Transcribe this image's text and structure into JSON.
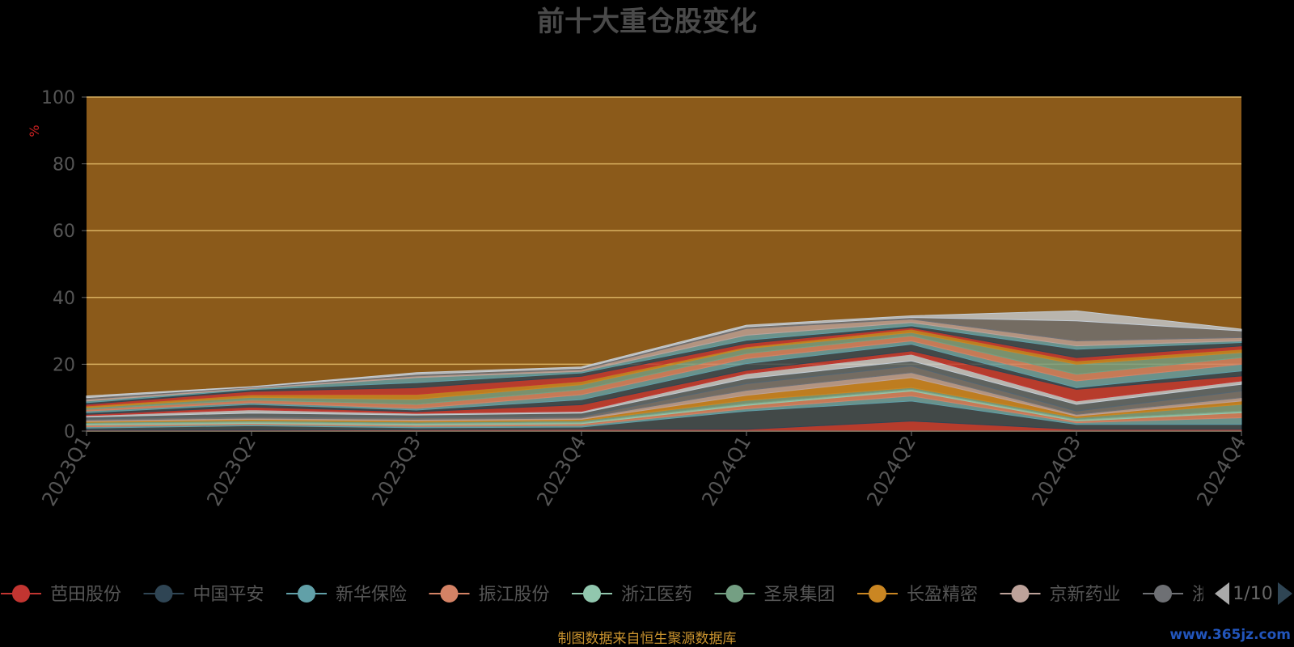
{
  "chart_data": {
    "type": "area",
    "title": "前十大重仓股变化",
    "ylabel": "%",
    "ylim": [
      0,
      100
    ],
    "y_ticks": [
      "0",
      "20",
      "40",
      "60",
      "80",
      "100"
    ],
    "categories": [
      "2023Q1",
      "2023Q2",
      "2023Q3",
      "2023Q4",
      "2024Q1",
      "2024Q2",
      "2024Q3",
      "2024Q4"
    ],
    "stacked": true,
    "grid": true,
    "plot_background": "#8B5A1A",
    "grid_color": "#d8b060",
    "series": [
      {
        "name": "芭田股份",
        "color": "#c23531",
        "values": [
          0.3,
          0.3,
          0.4,
          0.5,
          0.5,
          3.0,
          0.5,
          0.5
        ]
      },
      {
        "name": "中国平安",
        "color": "#2f4554",
        "values": [
          0.6,
          1.3,
          0.6,
          0.7,
          5.5,
          6.0,
          1.5,
          1.5
        ]
      },
      {
        "name": "新华保险",
        "color": "#61a0a8",
        "values": [
          0.4,
          0.4,
          0.4,
          0.5,
          0.7,
          1.5,
          0.5,
          2.0
        ]
      },
      {
        "name": "振江股份",
        "color": "#d48265",
        "values": [
          0.5,
          0.3,
          0.4,
          0.5,
          1.0,
          1.5,
          0.5,
          1.5
        ]
      },
      {
        "name": "浙江医药",
        "color": "#91c7ae",
        "values": [
          0.5,
          0.5,
          0.5,
          0.5,
          0.5,
          0.5,
          0.5,
          0.5
        ]
      },
      {
        "name": "圣泉集团",
        "color": "#749f83",
        "values": [
          0.3,
          0.3,
          0.4,
          0.4,
          1.0,
          0.5,
          0.5,
          2.0
        ]
      },
      {
        "name": "长盈精密",
        "color": "#ca8622",
        "values": [
          0.3,
          0.4,
          0.4,
          0.4,
          1.5,
          3.0,
          0.5,
          1.0
        ]
      },
      {
        "name": "京新药业",
        "color": "#bda29a",
        "values": [
          0.3,
          0.4,
          0.4,
          0.4,
          1.5,
          1.5,
          0.5,
          1.0
        ]
      },
      {
        "name": "",
        "color": "#6e7074",
        "values": [
          0.4,
          0.5,
          0.5,
          0.5,
          2.0,
          2.0,
          1.0,
          2.0
        ]
      },
      {
        "name": "",
        "color": "#546570",
        "values": [
          0.6,
          1.0,
          0.8,
          1.0,
          1.5,
          1.5,
          2.0,
          2.0
        ]
      },
      {
        "name": "",
        "color": "#c4ccd3",
        "values": [
          0.4,
          1.0,
          0.5,
          0.5,
          1.5,
          2.0,
          1.0,
          1.0
        ]
      },
      {
        "name": "",
        "color": "#c23531",
        "values": [
          0.4,
          0.8,
          0.5,
          2.0,
          1.0,
          1.0,
          3.5,
          1.5
        ]
      },
      {
        "name": "",
        "color": "#2f4554",
        "values": [
          0.5,
          0.8,
          0.5,
          1.5,
          2.0,
          2.0,
          0.5,
          1.5
        ]
      },
      {
        "name": "",
        "color": "#61a0a8",
        "values": [
          0.5,
          0.5,
          0.5,
          1.5,
          1.5,
          1.0,
          2.0,
          2.0
        ]
      },
      {
        "name": "",
        "color": "#d48265",
        "values": [
          0.5,
          0.8,
          1.2,
          1.5,
          1.5,
          1.5,
          2.0,
          2.0
        ]
      },
      {
        "name": "",
        "color": "#749f83",
        "values": [
          0.5,
          0.8,
          1.5,
          1.5,
          1.5,
          1.0,
          3.0,
          1.5
        ]
      },
      {
        "name": "",
        "color": "#ca8622",
        "values": [
          0.5,
          0.8,
          1.5,
          1.0,
          0.5,
          1.0,
          1.0,
          1.0
        ]
      },
      {
        "name": "",
        "color": "#c23531",
        "values": [
          0.5,
          1.0,
          2.0,
          1.5,
          1.0,
          0.5,
          1.0,
          1.0
        ]
      },
      {
        "name": "",
        "color": "#2f4554",
        "values": [
          0.5,
          0.5,
          1.5,
          1.0,
          1.0,
          0.5,
          2.5,
          1.0
        ]
      },
      {
        "name": "",
        "color": "#61a0a8",
        "values": [
          0.5,
          0.3,
          1.5,
          0.5,
          1.5,
          1.0,
          1.0,
          0.5
        ]
      },
      {
        "name": "",
        "color": "#bda29a",
        "values": [
          0.5,
          0.3,
          0.5,
          0.5,
          2.0,
          1.0,
          1.5,
          1.0
        ]
      },
      {
        "name": "",
        "color": "#6e7074",
        "values": [
          0.5,
          0.2,
          0.5,
          0.4,
          0.5,
          0.5,
          6.0,
          2.0
        ]
      },
      {
        "name": "",
        "color": "#c4ccd3",
        "values": [
          0.5,
          0.1,
          0.5,
          0.4,
          0.5,
          0.5,
          3.0,
          0.5
        ]
      }
    ]
  },
  "legend": {
    "page": "1/10",
    "hidden_partial_label": "浙"
  },
  "footer": {
    "source": "制图数据来自恒生聚源数据库",
    "watermark": "www.365jz.com"
  },
  "icons": {
    "prev": "triangle-left-icon",
    "next": "triangle-right-icon"
  }
}
